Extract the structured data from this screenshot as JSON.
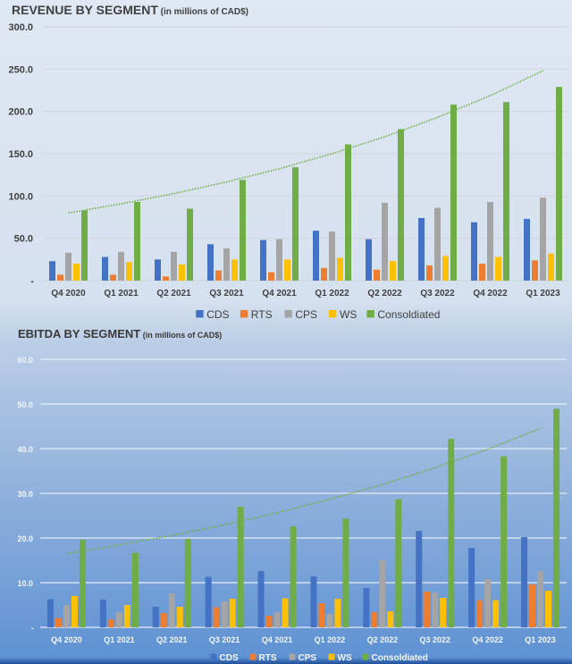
{
  "chart_data": [
    {
      "type": "bar",
      "title": "REVENUE BY SEGMENT",
      "subtitle": "(in millions of CAD$)",
      "xlabel": "",
      "ylabel": "",
      "ylim": [
        0,
        300
      ],
      "yticks": [
        "-",
        "50.0",
        "100.0",
        "150.0",
        "200.0",
        "250.0",
        "300.0"
      ],
      "grid": true,
      "legend": "bottom",
      "categories": [
        "Q4 2020",
        "Q1 2021",
        "Q2 2021",
        "Q3 2021",
        "Q4 2021",
        "Q1 2022",
        "Q2 2022",
        "Q3 2022",
        "Q4 2022",
        "Q1 2023"
      ],
      "series": [
        {
          "name": "CDS",
          "color": "#4472c4",
          "values": [
            23,
            28,
            25,
            43,
            48,
            59,
            49,
            74,
            69,
            73
          ]
        },
        {
          "name": "RTS",
          "color": "#ed7d31",
          "values": [
            7,
            7,
            5,
            12,
            10,
            15,
            13,
            18,
            20,
            24
          ]
        },
        {
          "name": "CPS",
          "color": "#a5a5a5",
          "values": [
            33,
            34,
            34,
            38,
            49,
            58,
            92,
            86,
            93,
            98
          ]
        },
        {
          "name": "WS",
          "color": "#ffc000",
          "values": [
            20,
            22,
            19,
            25,
            25,
            27,
            23,
            29,
            28,
            32
          ]
        },
        {
          "name": "Consoldiated",
          "color": "#70ad47",
          "values": [
            83,
            93,
            85,
            119,
            134,
            161,
            179,
            208,
            211,
            229
          ]
        }
      ],
      "trendline": {
        "series": "Consoldiated",
        "type": "exponential",
        "style": "dotted",
        "color": "#70ad47",
        "start": 80,
        "end": 248
      }
    },
    {
      "type": "bar",
      "title": "EBITDA BY SEGMENT",
      "subtitle": "(in millions of CAD$)",
      "xlabel": "",
      "ylabel": "",
      "ylim": [
        0,
        60
      ],
      "yticks": [
        "-",
        "10.0",
        "20.0",
        "30.0",
        "40.0",
        "50.0",
        "60.0"
      ],
      "grid": true,
      "legend": "bottom",
      "categories": [
        "Q4 2020",
        "Q1 2021",
        "Q2 2021",
        "Q3 2021",
        "Q4 2021",
        "Q1 2022",
        "Q2 2022",
        "Q3 2022",
        "Q4 2022",
        "Q1 2023"
      ],
      "series": [
        {
          "name": "CDS",
          "color": "#4472c4",
          "values": [
            6.3,
            6.2,
            4.6,
            11.3,
            12.6,
            11.4,
            8.8,
            21.6,
            17.8,
            20.2
          ]
        },
        {
          "name": "RTS",
          "color": "#ed7d31",
          "values": [
            2.1,
            1.8,
            3.2,
            4.5,
            2.6,
            5.4,
            3.4,
            8.0,
            6.1,
            9.6
          ]
        },
        {
          "name": "CPS",
          "color": "#a5a5a5",
          "values": [
            5.0,
            3.4,
            7.6,
            5.8,
            3.4,
            3.0,
            15.0,
            7.8,
            10.8,
            12.6
          ]
        },
        {
          "name": "WS",
          "color": "#ffc000",
          "values": [
            7.0,
            5.0,
            4.6,
            6.4,
            6.5,
            6.4,
            3.6,
            6.6,
            6.1,
            8.2
          ]
        },
        {
          "name": "Consoldiated",
          "color": "#70ad47",
          "values": [
            19.6,
            16.7,
            19.8,
            27.0,
            22.6,
            24.3,
            28.7,
            42.2,
            38.3,
            48.9
          ]
        }
      ],
      "trendline": {
        "series": "Consoldiated",
        "type": "exponential",
        "style": "dotted",
        "color": "#70ad47",
        "start": 16.5,
        "end": 44.5
      }
    }
  ]
}
